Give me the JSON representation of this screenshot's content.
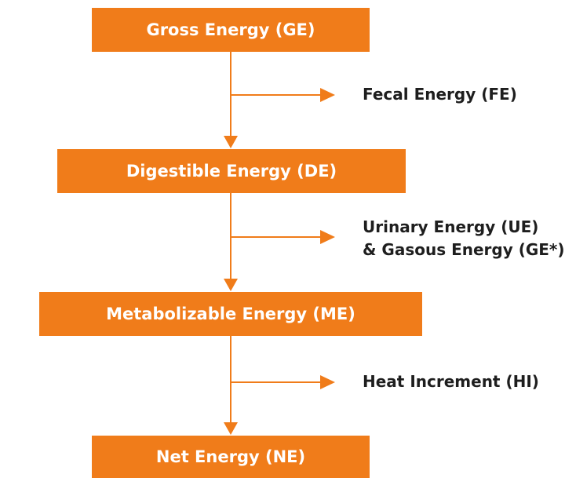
{
  "colors": {
    "accent": "#F07C1A",
    "text": "#1E1E1E",
    "box_text": "#FFFFFF"
  },
  "boxes": {
    "gross": "Gross Energy (GE)",
    "digestible": "Digestible Energy (DE)",
    "metabolizable": "Metabolizable Energy (ME)",
    "net": "Net Energy (NE)"
  },
  "losses": {
    "fecal": "Fecal Energy (FE)",
    "urinary_line1": "Urinary Energy (UE)",
    "urinary_line2": "& Gasous Energy (GE*)",
    "heat": "Heat Increment (HI)"
  }
}
